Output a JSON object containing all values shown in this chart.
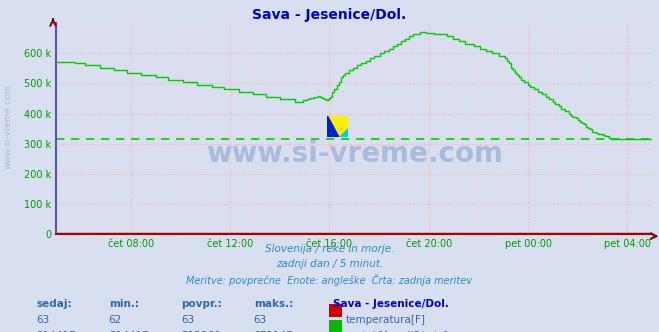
{
  "title": "Sava - Jesenice/Dol.",
  "title_color": "#0000cc",
  "bg_color": "#d8dff0",
  "plot_bg_color": "#d8dff0",
  "grid_color_major": "#ffaaaa",
  "grid_color_minor": "#ffcccc",
  "x_label_color": "#009900",
  "y_label_color": "#009900",
  "line_color_flow": "#00cc00",
  "line_color_temp": "#cc0000",
  "dashed_line_color": "#00cc00",
  "dashed_line_value": 314417,
  "x_tick_labels": [
    "čet 08:00",
    "čet 12:00",
    "čet 16:00",
    "čet 20:00",
    "pet 00:00",
    "pet 04:00"
  ],
  "y_max": 700000,
  "y_min": 0,
  "y_tick_labels": [
    "0",
    "100 k",
    "200 k",
    "300 k",
    "400 k",
    "500 k",
    "600 k"
  ],
  "subtitle1": "Slovenija / reke in morje.",
  "subtitle2": "zadnji dan / 5 minut.",
  "subtitle3": "Meritve: povprečne  Enote: angleške  Črta: zadnja meritev",
  "subtitle_color": "#3388bb",
  "watermark": "www.si-vreme.com",
  "watermark_color": "#aabbdd",
  "side_label": "www.si-vreme.com",
  "side_label_color": "#aabbdd",
  "legend_title": "Sava - Jesenice/Dol.",
  "legend_title_color": "#0000cc",
  "legend_color": "#3366aa",
  "arrow_color": "#880000"
}
